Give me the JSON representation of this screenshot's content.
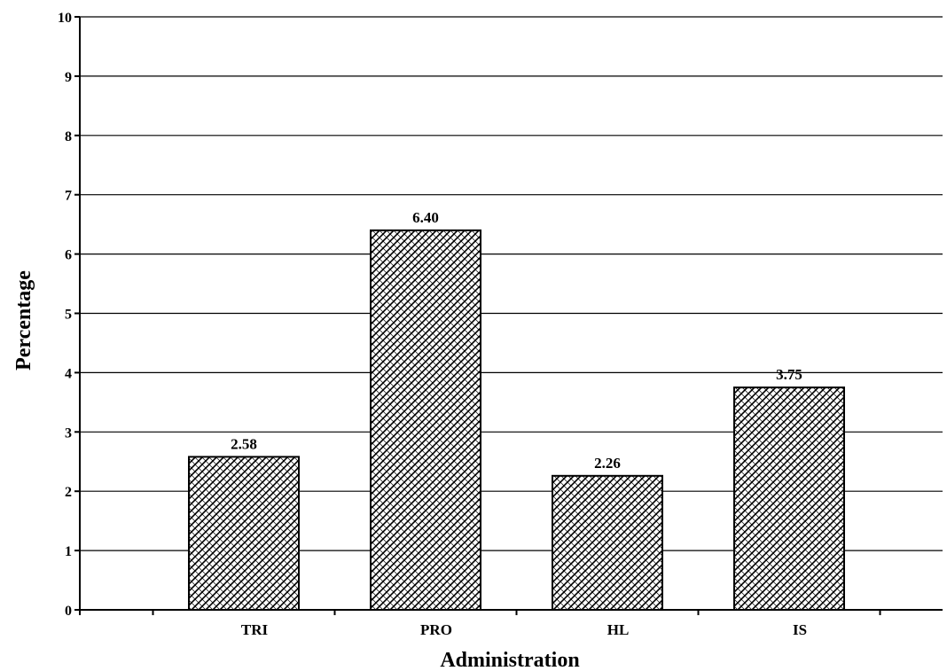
{
  "chart_data": {
    "type": "bar",
    "categories": [
      "TRI",
      "PRO",
      "HL",
      "IS"
    ],
    "values": [
      2.58,
      6.4,
      2.26,
      3.75
    ],
    "data_labels": [
      "2.58",
      "6.40",
      "2.26",
      "3.75"
    ],
    "xlabel": "Administration",
    "ylabel": "Percentage",
    "ylim": [
      0,
      10
    ],
    "yticks": [
      0,
      1,
      2,
      3,
      4,
      5,
      6,
      7,
      8,
      9,
      10
    ],
    "grid": true,
    "bar_fill": "crosshatch"
  }
}
